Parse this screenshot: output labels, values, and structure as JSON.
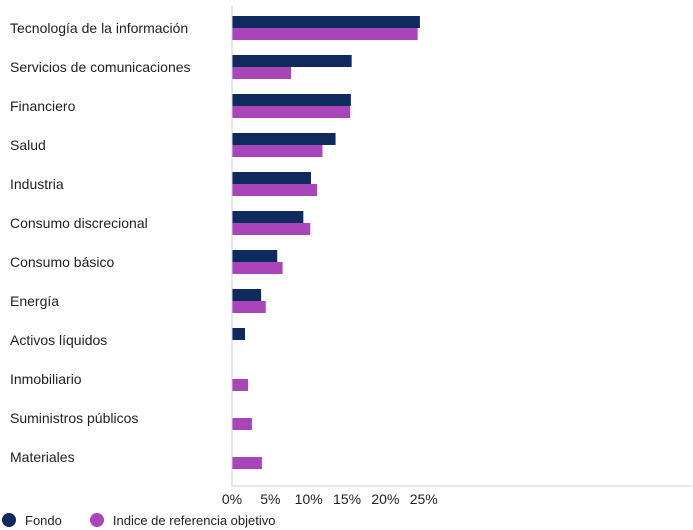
{
  "chart_data": {
    "type": "bar",
    "orientation": "horizontal",
    "categories": [
      "Tecnología de la información",
      "Servicios de comunicaciones",
      "Financiero",
      "Salud",
      "Industria",
      "Consumo discrecional",
      "Consumo básico",
      "Energía",
      "Activos líquidos",
      "Inmobiliario",
      "Suministros públicos",
      "Materiales"
    ],
    "series": [
      {
        "name": "Fondo",
        "color": "#0f2a5c",
        "values": [
          24.5,
          15.6,
          15.5,
          13.5,
          10.3,
          9.3,
          5.9,
          3.8,
          1.7,
          null,
          null,
          null
        ]
      },
      {
        "name": "Indice de referencia objetivo",
        "color": "#a745b9",
        "values": [
          24.2,
          7.7,
          15.4,
          11.8,
          11.1,
          10.2,
          6.6,
          4.4,
          null,
          2.1,
          2.6,
          3.9
        ]
      }
    ],
    "xlim": [
      0,
      30
    ],
    "x_ticks": [
      "0%",
      "5%",
      "10%",
      "15%",
      "20%",
      "25%"
    ],
    "x_tick_values": [
      0,
      5,
      10,
      15,
      20,
      25
    ],
    "grid": false,
    "legend_position": "bottom-left",
    "title": "",
    "xlabel": "",
    "ylabel": ""
  }
}
